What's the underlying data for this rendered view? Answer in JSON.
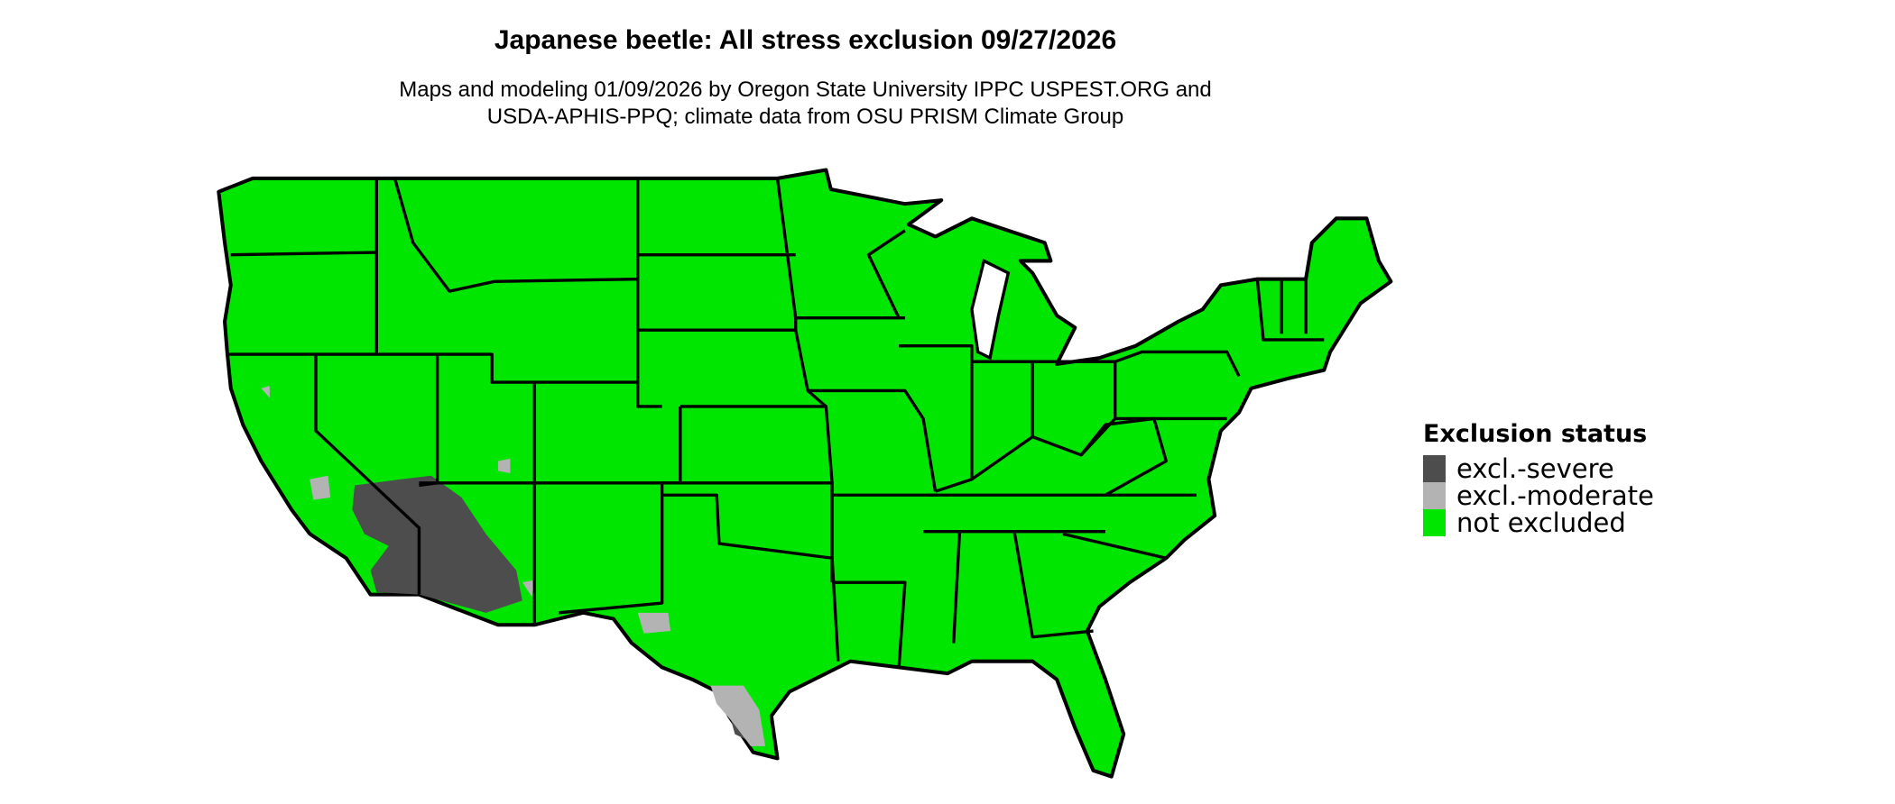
{
  "title": "Japanese beetle: All stress exclusion 09/27/2026",
  "subtitle_lines": [
    "Maps and modeling 01/09/2026 by Oregon State University IPPC USPEST.ORG and",
    "USDA-APHIS-PPQ; climate data from OSU PRISM Climate Group"
  ],
  "legend": {
    "title": "Exclusion status",
    "items": [
      {
        "label": "excl.-severe",
        "color": "#4d4d4d"
      },
      {
        "label": "excl.-moderate",
        "color": "#b3b3b3"
      },
      {
        "label": "not excluded",
        "color": "#00e600"
      }
    ]
  },
  "colors": {
    "land": "#00e600",
    "border": "#000000",
    "severe": "#4d4d4d",
    "moderate": "#b3b3b3"
  }
}
